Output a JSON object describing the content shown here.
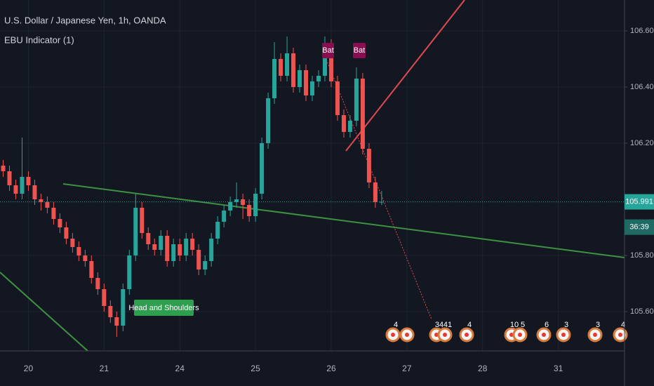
{
  "chart_data": {
    "type": "candlestick",
    "title": "U.S. Dollar / Japanese Yen, 1h, OANDA",
    "indicator": "EBU Indicator (1)",
    "up_color": "#26a69a",
    "down_color": "#ef5350",
    "categories": [
      null,
      null,
      null,
      null,
      "20",
      null,
      null,
      null,
      null,
      null,
      null,
      null,
      null,
      null,
      null,
      null,
      "21",
      null,
      null,
      null,
      null,
      null,
      null,
      null,
      null,
      null,
      null,
      null,
      "24",
      null,
      null,
      null,
      null,
      null,
      null,
      null,
      null,
      null,
      null,
      null,
      "25",
      null,
      null,
      null,
      null,
      null,
      null,
      null,
      null,
      null,
      null,
      null,
      "26",
      null,
      null,
      null,
      null,
      null,
      null,
      null,
      null,
      null,
      null,
      null,
      "27",
      null,
      null,
      null,
      null,
      null,
      null,
      null,
      null,
      null,
      null,
      null,
      "28",
      null,
      null,
      null,
      null,
      null,
      null,
      null,
      null,
      null,
      null,
      null,
      "31",
      null,
      null,
      null,
      null,
      null,
      null,
      null,
      null,
      null,
      null
    ],
    "open": [
      106.12,
      106.1,
      106.05,
      106.02,
      106.08,
      106.05,
      106.0,
      105.99,
      105.97,
      105.93,
      105.9,
      105.86,
      105.83,
      105.8,
      105.78,
      105.72,
      105.68,
      105.62,
      105.58,
      105.55,
      105.68,
      105.8,
      105.97,
      105.88,
      105.84,
      105.82,
      105.87,
      105.78,
      105.84,
      105.8,
      105.86,
      105.82,
      105.75,
      105.78,
      105.86,
      105.92,
      105.96,
      105.99,
      106.0,
      105.98,
      105.94,
      106.02,
      106.2,
      106.36,
      106.5,
      106.44,
      106.52,
      106.4,
      106.46,
      106.37,
      106.42,
      106.44,
      106.55,
      106.42,
      106.3,
      106.24,
      106.28,
      106.43,
      106.18,
      106.06,
      105.99,
      null,
      null,
      null,
      null,
      null,
      null,
      null,
      null,
      null,
      null,
      null,
      null,
      null,
      null,
      null,
      null,
      null,
      null,
      null,
      null,
      null,
      null,
      null,
      null,
      null,
      null,
      null,
      null,
      null,
      null,
      null,
      null,
      null,
      null,
      null,
      null,
      null,
      null
    ],
    "high": [
      106.14,
      106.12,
      106.07,
      106.22,
      106.1,
      106.07,
      106.02,
      106.01,
      105.99,
      105.95,
      105.92,
      105.88,
      105.85,
      105.82,
      105.8,
      105.74,
      105.7,
      105.64,
      105.6,
      105.7,
      105.82,
      106.02,
      105.99,
      105.9,
      105.86,
      105.89,
      105.89,
      105.86,
      105.86,
      105.88,
      105.88,
      105.84,
      105.8,
      105.88,
      105.94,
      105.98,
      106.01,
      106.06,
      106.02,
      106.0,
      106.04,
      106.22,
      106.38,
      106.56,
      106.52,
      106.58,
      106.54,
      106.48,
      106.48,
      106.44,
      106.46,
      106.58,
      106.57,
      106.44,
      106.32,
      106.3,
      106.47,
      106.45,
      106.2,
      106.08,
      106.03,
      null,
      null,
      null,
      null,
      null,
      null,
      null,
      null,
      null,
      null,
      null,
      null,
      null,
      null,
      null,
      null,
      null,
      null,
      null,
      null,
      null,
      null,
      null,
      null,
      null,
      null,
      null,
      null,
      null,
      null,
      null,
      null,
      null,
      null,
      null,
      null,
      null,
      null
    ],
    "low": [
      106.08,
      106.03,
      106.0,
      106.0,
      106.03,
      105.98,
      105.96,
      105.95,
      105.91,
      105.88,
      105.84,
      105.81,
      105.78,
      105.76,
      105.7,
      105.66,
      105.6,
      105.56,
      105.51,
      105.53,
      105.66,
      105.78,
      105.86,
      105.82,
      105.8,
      105.8,
      105.76,
      105.76,
      105.78,
      105.78,
      105.8,
      105.73,
      105.73,
      105.76,
      105.84,
      105.9,
      105.94,
      105.97,
      105.93,
      105.92,
      105.92,
      106.0,
      106.18,
      106.34,
      106.42,
      106.42,
      106.38,
      106.38,
      106.35,
      106.35,
      106.4,
      106.42,
      106.4,
      106.28,
      106.22,
      106.22,
      106.26,
      106.16,
      106.04,
      105.97,
      105.98,
      null,
      null,
      null,
      null,
      null,
      null,
      null,
      null,
      null,
      null,
      null,
      null,
      null,
      null,
      null,
      null,
      null,
      null,
      null,
      null,
      null,
      null,
      null,
      null,
      null,
      null,
      null,
      null,
      null,
      null,
      null,
      null,
      null,
      null,
      null,
      null,
      null,
      null
    ],
    "close": [
      106.1,
      106.05,
      106.02,
      106.08,
      106.05,
      106.0,
      105.99,
      105.97,
      105.93,
      105.9,
      105.86,
      105.83,
      105.8,
      105.78,
      105.72,
      105.68,
      105.62,
      105.58,
      105.55,
      105.68,
      105.8,
      105.97,
      105.88,
      105.84,
      105.82,
      105.87,
      105.78,
      105.84,
      105.8,
      105.86,
      105.82,
      105.75,
      105.78,
      105.86,
      105.92,
      105.96,
      105.99,
      106.0,
      105.98,
      105.94,
      106.02,
      106.2,
      106.36,
      106.5,
      106.44,
      106.52,
      106.4,
      106.46,
      106.37,
      106.42,
      106.44,
      106.55,
      106.42,
      106.3,
      106.24,
      106.28,
      106.43,
      106.18,
      106.06,
      105.99,
      105.991,
      null,
      null,
      null,
      null,
      null,
      null,
      null,
      null,
      null,
      null,
      null,
      null,
      null,
      null,
      null,
      null,
      null,
      null,
      null,
      null,
      null,
      null,
      null,
      null,
      null,
      null,
      null,
      null,
      null,
      null,
      null,
      null,
      null,
      null,
      null,
      null,
      null,
      null
    ],
    "ylim": [
      105.46,
      106.71
    ],
    "yticks": [
      {
        "value": 105.6,
        "label": "105.600"
      },
      {
        "value": 105.8,
        "label": "105.800"
      },
      {
        "value": 106.2,
        "label": "106.200"
      },
      {
        "value": 106.4,
        "label": "106.400"
      },
      {
        "value": 106.6,
        "label": "106.600"
      }
    ],
    "grid": true,
    "last_price": 105.991,
    "countdown": "36:39",
    "annotations": [
      "Bat",
      "Bat",
      "Head and Shoulders"
    ],
    "events": [
      "4",
      "34",
      "41",
      "4",
      "10",
      "5",
      "6",
      "3",
      "3",
      "4"
    ]
  }
}
